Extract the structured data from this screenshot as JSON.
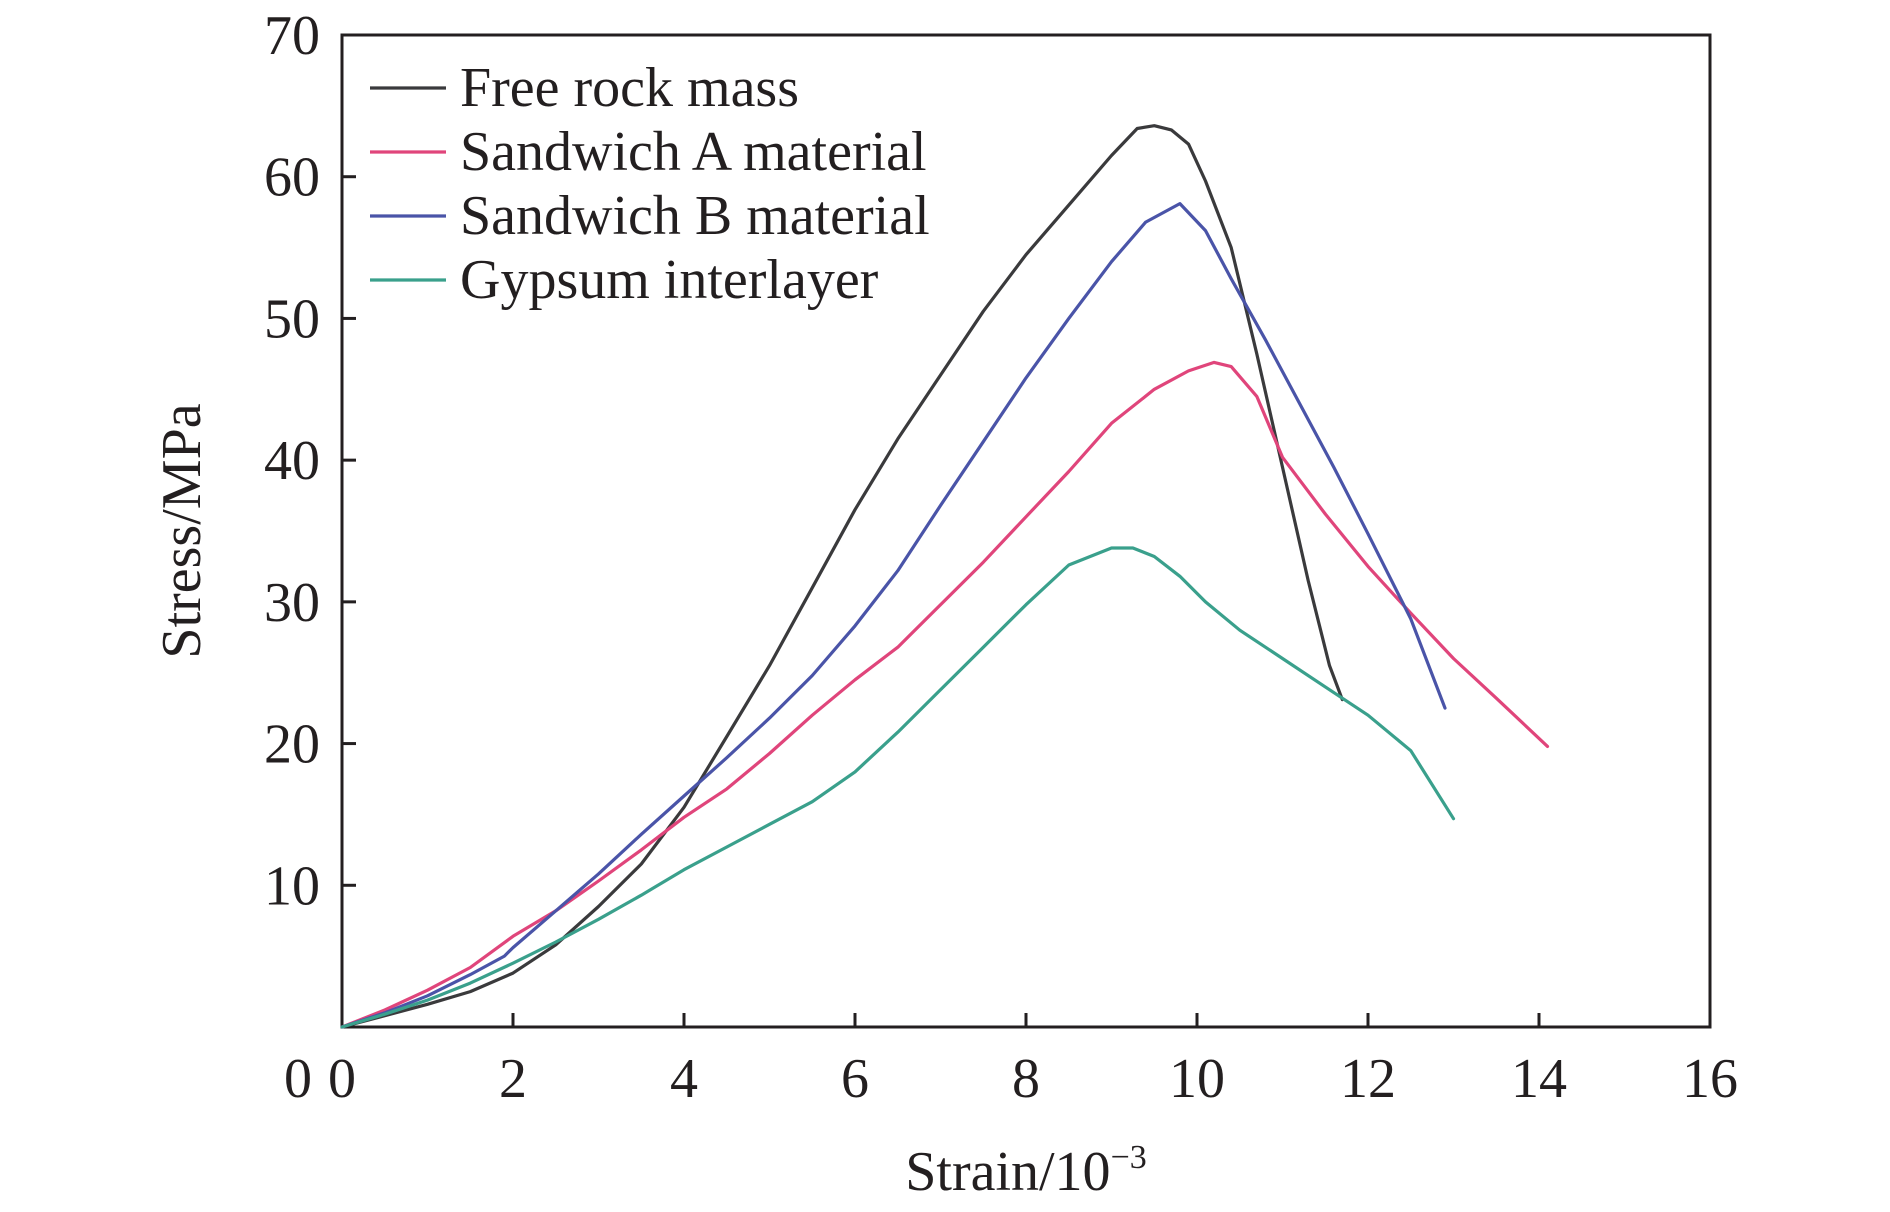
{
  "chart_data": {
    "type": "line",
    "xlabel": "Strain/10",
    "xlabel_superscript": "−3",
    "ylabel": "Stress/MPa",
    "xlim": [
      0,
      16
    ],
    "ylim": [
      0,
      70
    ],
    "xticks": [
      0,
      2,
      4,
      6,
      8,
      10,
      12,
      14,
      16
    ],
    "yticks": [
      10,
      20,
      30,
      40,
      50,
      60,
      70
    ],
    "ytick_zero_label": "0",
    "grid": false,
    "legend_position": "top-left",
    "series": [
      {
        "name": "Free rock mass",
        "color": "#3a3a3c",
        "points": [
          [
            0,
            0
          ],
          [
            0.5,
            0.8
          ],
          [
            1,
            1.6
          ],
          [
            1.5,
            2.5
          ],
          [
            2,
            3.8
          ],
          [
            2.5,
            5.8
          ],
          [
            3,
            8.5
          ],
          [
            3.5,
            11.5
          ],
          [
            4,
            15.5
          ],
          [
            4.5,
            20.5
          ],
          [
            5,
            25.5
          ],
          [
            5.5,
            31
          ],
          [
            6,
            36.5
          ],
          [
            6.5,
            41.5
          ],
          [
            7,
            46
          ],
          [
            7.5,
            50.5
          ],
          [
            8,
            54.5
          ],
          [
            8.5,
            58
          ],
          [
            9,
            61.5
          ],
          [
            9.3,
            63.4
          ],
          [
            9.5,
            63.6
          ],
          [
            9.7,
            63.3
          ],
          [
            9.9,
            62.3
          ],
          [
            10.1,
            59.7
          ],
          [
            10.4,
            55
          ],
          [
            10.7,
            47.5
          ],
          [
            11,
            39.5
          ],
          [
            11.3,
            31.5
          ],
          [
            11.55,
            25.5
          ],
          [
            11.7,
            23.1
          ]
        ]
      },
      {
        "name": "Sandwich A material",
        "color": "#e0457b",
        "points": [
          [
            0,
            0
          ],
          [
            0.5,
            1.2
          ],
          [
            1,
            2.6
          ],
          [
            1.5,
            4.2
          ],
          [
            2,
            6.4
          ],
          [
            2.5,
            8.2
          ],
          [
            3,
            10.3
          ],
          [
            3.5,
            12.5
          ],
          [
            4,
            14.8
          ],
          [
            4.5,
            16.8
          ],
          [
            5,
            19.3
          ],
          [
            5.5,
            22
          ],
          [
            6,
            24.5
          ],
          [
            6.5,
            26.8
          ],
          [
            7,
            29.8
          ],
          [
            7.5,
            32.8
          ],
          [
            8,
            36
          ],
          [
            8.5,
            39.2
          ],
          [
            9,
            42.6
          ],
          [
            9.5,
            45
          ],
          [
            9.9,
            46.3
          ],
          [
            10.2,
            46.9
          ],
          [
            10.4,
            46.6
          ],
          [
            10.7,
            44.5
          ],
          [
            11,
            40.2
          ],
          [
            11.5,
            36.2
          ],
          [
            12,
            32.5
          ],
          [
            12.5,
            29.2
          ],
          [
            13,
            26
          ],
          [
            13.5,
            23.2
          ],
          [
            14.1,
            19.8
          ]
        ]
      },
      {
        "name": "Sandwich B material",
        "color": "#4a54a8",
        "points": [
          [
            0,
            0
          ],
          [
            0.5,
            1
          ],
          [
            1,
            2.2
          ],
          [
            1.5,
            3.7
          ],
          [
            1.9,
            5
          ],
          [
            2,
            5.6
          ],
          [
            2.5,
            8.2
          ],
          [
            3,
            10.8
          ],
          [
            3.5,
            13.6
          ],
          [
            4,
            16.3
          ],
          [
            4.5,
            19
          ],
          [
            5,
            21.8
          ],
          [
            5.5,
            24.8
          ],
          [
            6,
            28.3
          ],
          [
            6.5,
            32.2
          ],
          [
            7,
            36.8
          ],
          [
            7.5,
            41.3
          ],
          [
            8,
            45.8
          ],
          [
            8.5,
            50
          ],
          [
            9,
            54
          ],
          [
            9.4,
            56.8
          ],
          [
            9.8,
            58.1
          ],
          [
            10.1,
            56.2
          ],
          [
            10.4,
            52.8
          ],
          [
            10.8,
            48.5
          ],
          [
            11.2,
            44
          ],
          [
            11.6,
            39.5
          ],
          [
            12,
            34.8
          ],
          [
            12.5,
            28.8
          ],
          [
            12.9,
            22.5
          ]
        ]
      },
      {
        "name": "Gypsum interlayer",
        "color": "#3aa08c",
        "points": [
          [
            0,
            0
          ],
          [
            0.5,
            0.9
          ],
          [
            1,
            1.9
          ],
          [
            1.5,
            3.1
          ],
          [
            2,
            4.5
          ],
          [
            2.5,
            6
          ],
          [
            3,
            7.6
          ],
          [
            3.5,
            9.3
          ],
          [
            4,
            11.1
          ],
          [
            4.5,
            12.7
          ],
          [
            5,
            14.3
          ],
          [
            5.5,
            15.9
          ],
          [
            6,
            18
          ],
          [
            6.5,
            20.8
          ],
          [
            7,
            23.8
          ],
          [
            7.5,
            26.8
          ],
          [
            8,
            29.8
          ],
          [
            8.5,
            32.6
          ],
          [
            9,
            33.8
          ],
          [
            9.25,
            33.8
          ],
          [
            9.5,
            33.2
          ],
          [
            9.8,
            31.8
          ],
          [
            10.1,
            30
          ],
          [
            10.5,
            28
          ],
          [
            11,
            26
          ],
          [
            11.5,
            24
          ],
          [
            12,
            22
          ],
          [
            12.5,
            19.5
          ],
          [
            13,
            14.7
          ]
        ]
      }
    ]
  }
}
